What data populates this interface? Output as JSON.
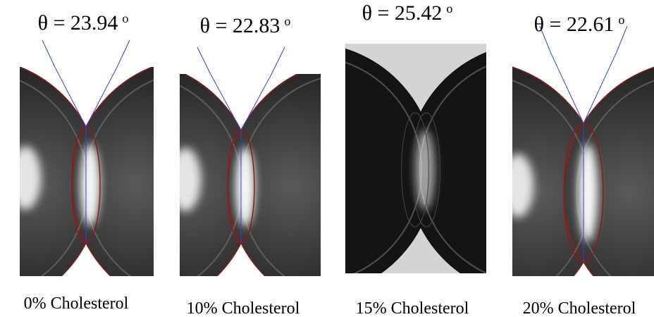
{
  "panels": [
    {
      "angle": "θ = 23.94",
      "degree": "o",
      "caption": "0% Cholesterol"
    },
    {
      "angle": "θ = 22.83",
      "degree": "o",
      "caption": "10% Cholesterol"
    },
    {
      "angle": "θ = 25.42",
      "degree": "o",
      "caption": "15% Cholesterol"
    },
    {
      "angle": "θ = 22.61",
      "degree": "o",
      "caption": "20% Cholesterol"
    }
  ]
}
